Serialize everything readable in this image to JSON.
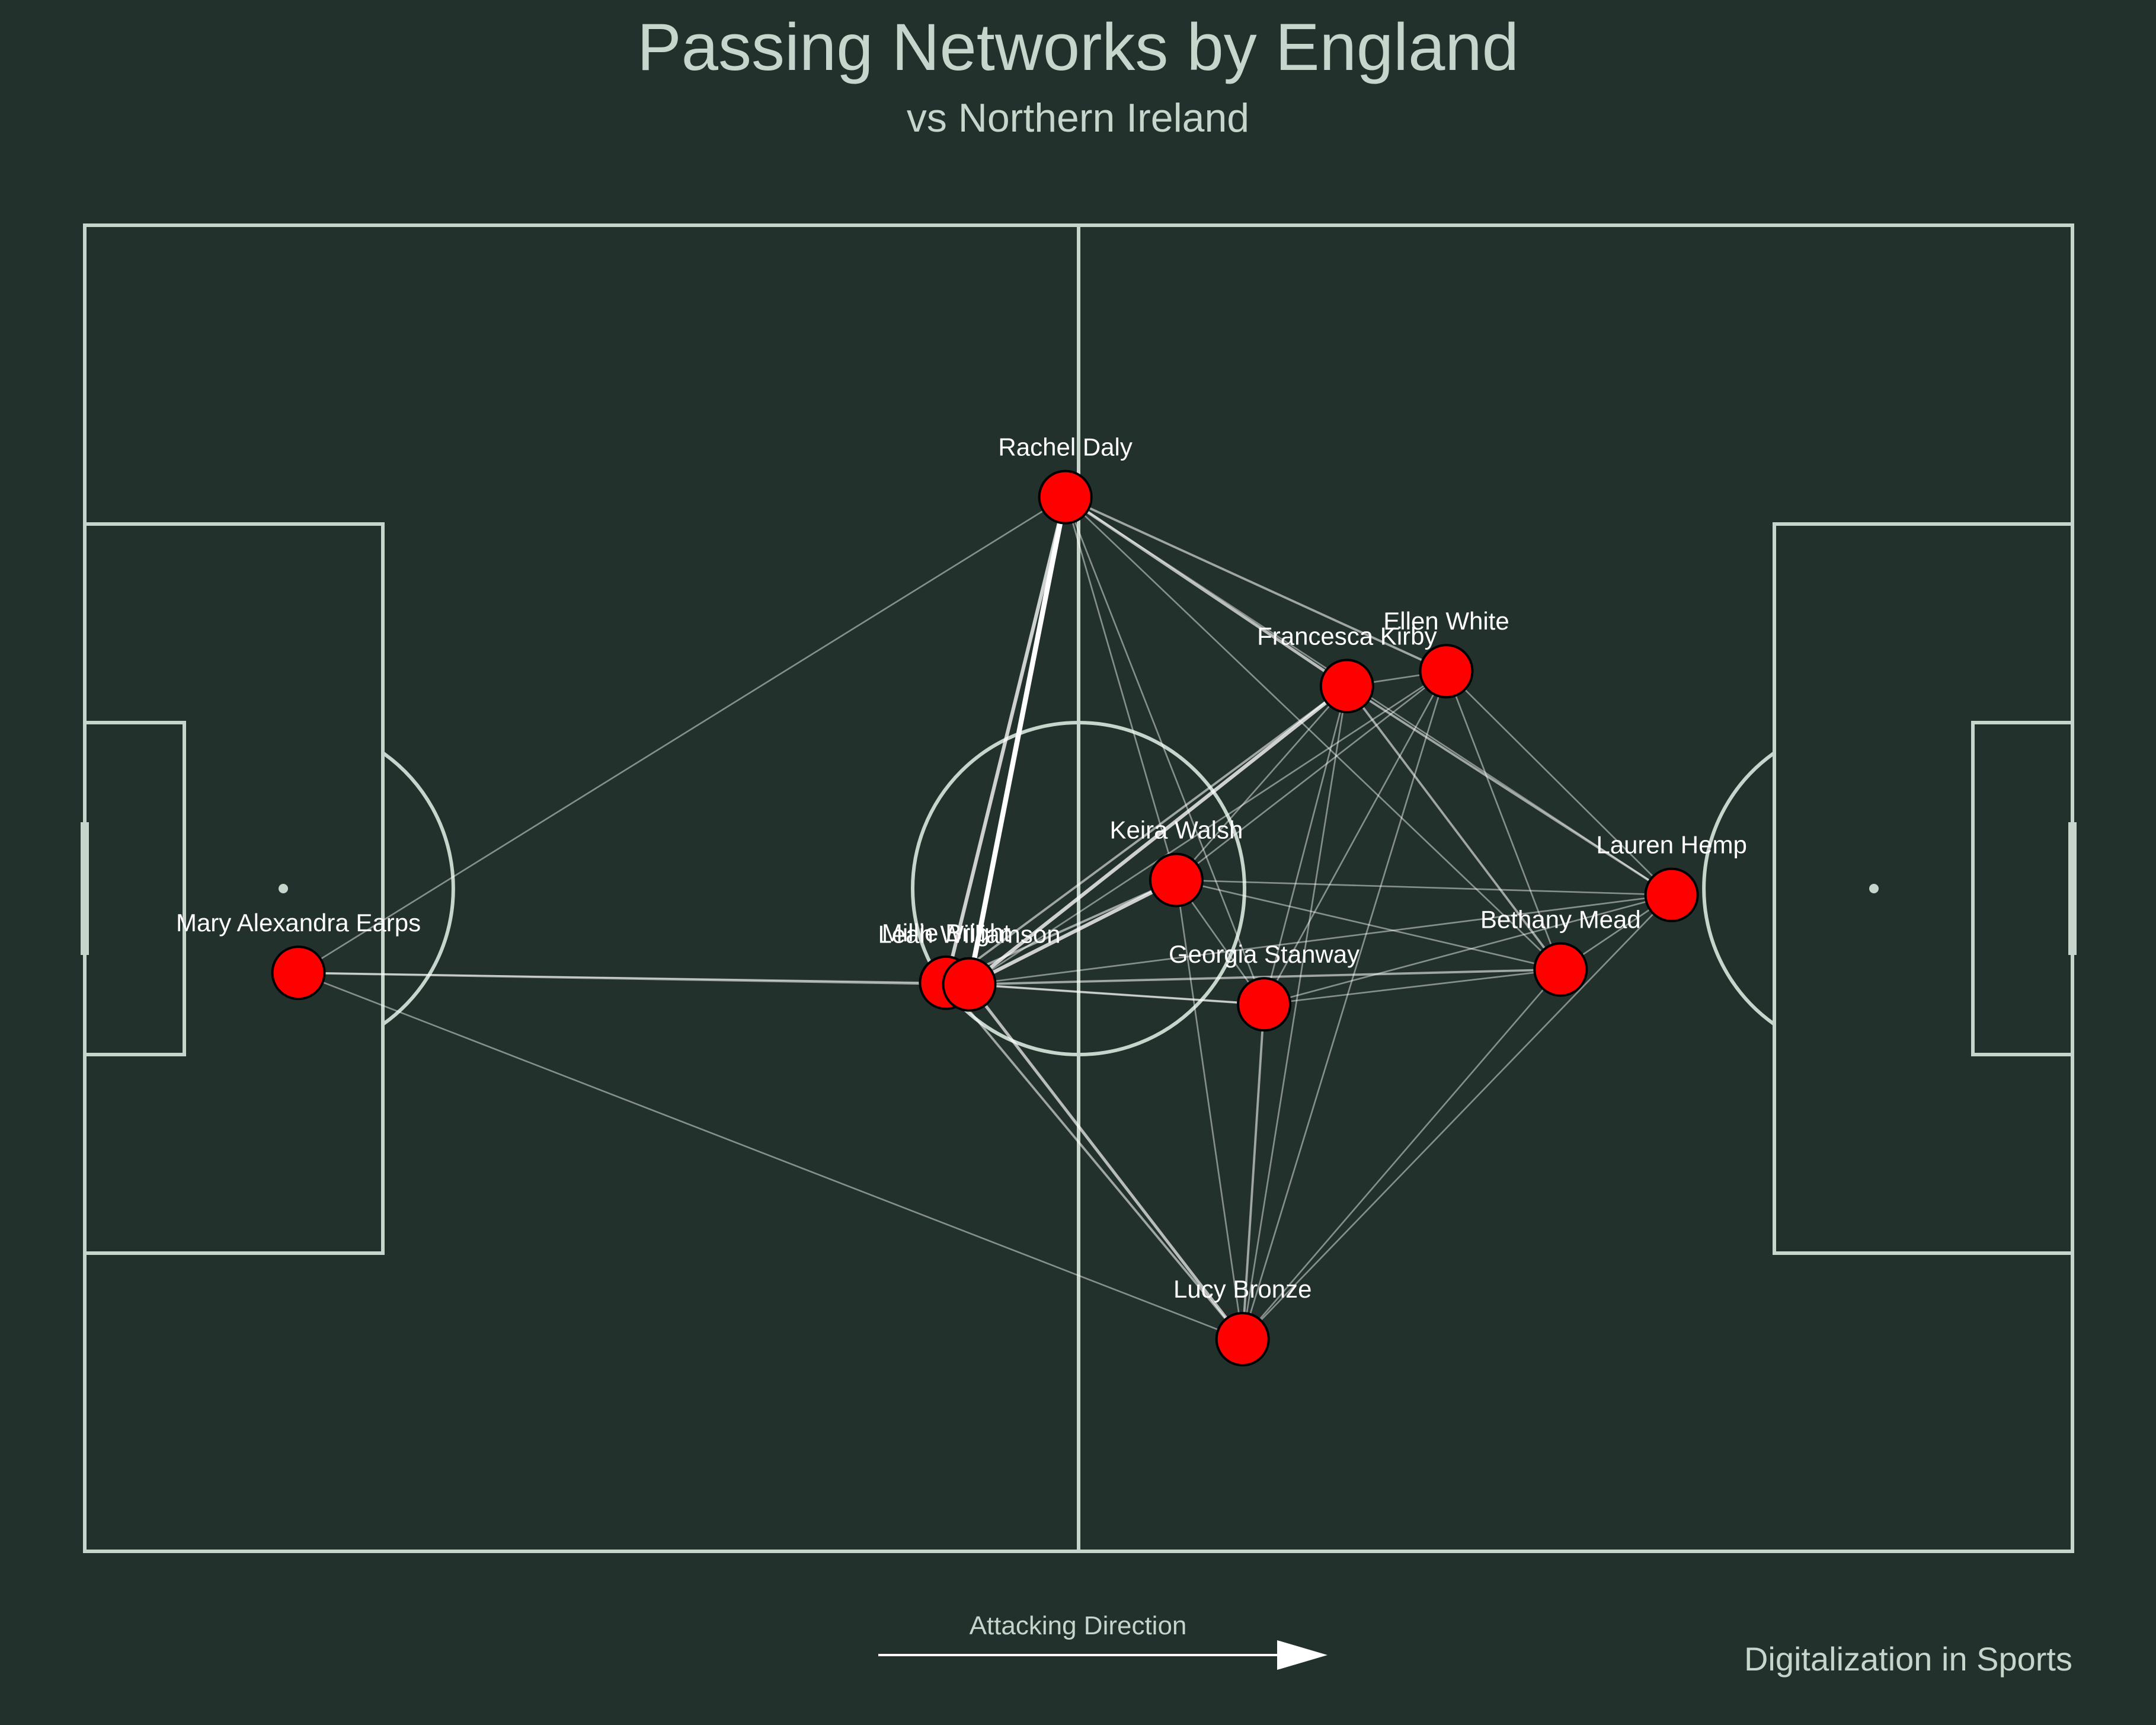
{
  "header": {
    "title": "Passing Networks by England",
    "subtitle": "vs Northern Ireland"
  },
  "footer": {
    "direction_label": "Attacking Direction",
    "credit": "Digitalization in Sports"
  },
  "colors": {
    "background": "#22312b",
    "pitch_lines": "#c7d5cc",
    "node_fill": "#ff0000",
    "node_edge": "#000000",
    "pass_lines": "#ffffff",
    "label_text": "#ffffff"
  },
  "chart_data": {
    "type": "network",
    "pitch": {
      "length": 120,
      "width": 80
    },
    "attacking_direction": "left-to-right",
    "nodes": [
      {
        "id": "earps",
        "name": "Mary Alexandra Earps",
        "x": 12.9,
        "y": 45.1
      },
      {
        "id": "daly",
        "name": "Rachel Daly",
        "x": 59.2,
        "y": 16.4
      },
      {
        "id": "kirby",
        "name": "Francesca Kirby",
        "x": 76.2,
        "y": 27.8
      },
      {
        "id": "white",
        "name": "Ellen White",
        "x": 82.2,
        "y": 26.9
      },
      {
        "id": "walsh",
        "name": "Keira Walsh",
        "x": 65.9,
        "y": 39.5
      },
      {
        "id": "hemp",
        "name": "Lauren Hemp",
        "x": 95.8,
        "y": 40.4
      },
      {
        "id": "mead",
        "name": "Bethany Mead",
        "x": 89.1,
        "y": 44.9
      },
      {
        "id": "stanway",
        "name": "Georgia Stanway",
        "x": 71.2,
        "y": 47.0
      },
      {
        "id": "bright",
        "name": "Millie Bright",
        "x": 52.0,
        "y": 45.7
      },
      {
        "id": "williamson",
        "name": "Leah Williamson",
        "x": 53.4,
        "y": 45.8
      },
      {
        "id": "bronze",
        "name": "Lucy Bronze",
        "x": 69.9,
        "y": 67.2
      }
    ],
    "edges": [
      {
        "from": "daly",
        "to": "williamson",
        "weight": 6
      },
      {
        "from": "daly",
        "to": "bright",
        "weight": 4
      },
      {
        "from": "daly",
        "to": "kirby",
        "weight": 3
      },
      {
        "from": "daly",
        "to": "white",
        "weight": 2
      },
      {
        "from": "daly",
        "to": "walsh",
        "weight": 1
      },
      {
        "from": "daly",
        "to": "mead",
        "weight": 1
      },
      {
        "from": "daly",
        "to": "stanway",
        "weight": 1
      },
      {
        "from": "daly",
        "to": "earps",
        "weight": 1
      },
      {
        "from": "daly",
        "to": "hemp",
        "weight": 1
      },
      {
        "from": "kirby",
        "to": "williamson",
        "weight": 4
      },
      {
        "from": "kirby",
        "to": "bright",
        "weight": 2
      },
      {
        "from": "kirby",
        "to": "white",
        "weight": 1
      },
      {
        "from": "kirby",
        "to": "hemp",
        "weight": 2
      },
      {
        "from": "kirby",
        "to": "mead",
        "weight": 2
      },
      {
        "from": "kirby",
        "to": "walsh",
        "weight": 1
      },
      {
        "from": "kirby",
        "to": "stanway",
        "weight": 1
      },
      {
        "from": "kirby",
        "to": "bronze",
        "weight": 1
      },
      {
        "from": "white",
        "to": "williamson",
        "weight": 1
      },
      {
        "from": "white",
        "to": "hemp",
        "weight": 1
      },
      {
        "from": "white",
        "to": "mead",
        "weight": 1
      },
      {
        "from": "white",
        "to": "bronze",
        "weight": 1
      },
      {
        "from": "white",
        "to": "stanway",
        "weight": 1
      },
      {
        "from": "white",
        "to": "walsh",
        "weight": 1
      },
      {
        "from": "walsh",
        "to": "williamson",
        "weight": 4
      },
      {
        "from": "walsh",
        "to": "bright",
        "weight": 2
      },
      {
        "from": "walsh",
        "to": "stanway",
        "weight": 1
      },
      {
        "from": "walsh",
        "to": "hemp",
        "weight": 1
      },
      {
        "from": "walsh",
        "to": "mead",
        "weight": 1
      },
      {
        "from": "walsh",
        "to": "bronze",
        "weight": 1
      },
      {
        "from": "williamson",
        "to": "bright",
        "weight": 3
      },
      {
        "from": "williamson",
        "to": "stanway",
        "weight": 2
      },
      {
        "from": "williamson",
        "to": "mead",
        "weight": 2
      },
      {
        "from": "williamson",
        "to": "bronze",
        "weight": 3
      },
      {
        "from": "williamson",
        "to": "hemp",
        "weight": 1
      },
      {
        "from": "williamson",
        "to": "earps",
        "weight": 2
      },
      {
        "from": "bright",
        "to": "earps",
        "weight": 1
      },
      {
        "from": "bright",
        "to": "bronze",
        "weight": 2
      },
      {
        "from": "bright",
        "to": "stanway",
        "weight": 1
      },
      {
        "from": "stanway",
        "to": "bronze",
        "weight": 2
      },
      {
        "from": "stanway",
        "to": "mead",
        "weight": 1
      },
      {
        "from": "stanway",
        "to": "hemp",
        "weight": 1
      },
      {
        "from": "mead",
        "to": "hemp",
        "weight": 1
      },
      {
        "from": "mead",
        "to": "bronze",
        "weight": 1
      },
      {
        "from": "hemp",
        "to": "bronze",
        "weight": 1
      },
      {
        "from": "earps",
        "to": "bronze",
        "weight": 1
      }
    ]
  }
}
